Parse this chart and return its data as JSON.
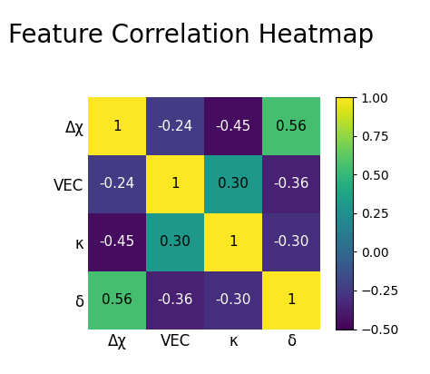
{
  "title": "Feature Correlation Heatmap",
  "labels": [
    "Δχ",
    "VEC",
    "κ",
    "δ"
  ],
  "matrix": [
    [
      1.0,
      -0.24,
      -0.45,
      0.56
    ],
    [
      -0.24,
      1.0,
      0.3,
      -0.36
    ],
    [
      -0.45,
      0.3,
      1.0,
      -0.3
    ],
    [
      0.56,
      -0.36,
      -0.3,
      1.0
    ]
  ],
  "annotations": [
    [
      "1",
      "-0.24",
      "-0.45",
      "0.56"
    ],
    [
      "-0.24",
      "1",
      "0.30",
      "-0.36"
    ],
    [
      "-0.45",
      "0.30",
      "1",
      "-0.30"
    ],
    [
      "0.56",
      "-0.36",
      "-0.30",
      "1"
    ]
  ],
  "cmap": "viridis",
  "vmin": -0.5,
  "vmax": 1.0,
  "colorbar_ticks": [
    1.0,
    0.75,
    0.5,
    0.25,
    0.0,
    -0.25,
    -0.5
  ],
  "title_fontsize": 20,
  "label_fontsize": 12,
  "annot_fontsize": 11,
  "colorbar_fontsize": 10,
  "background_color": "#ffffff"
}
